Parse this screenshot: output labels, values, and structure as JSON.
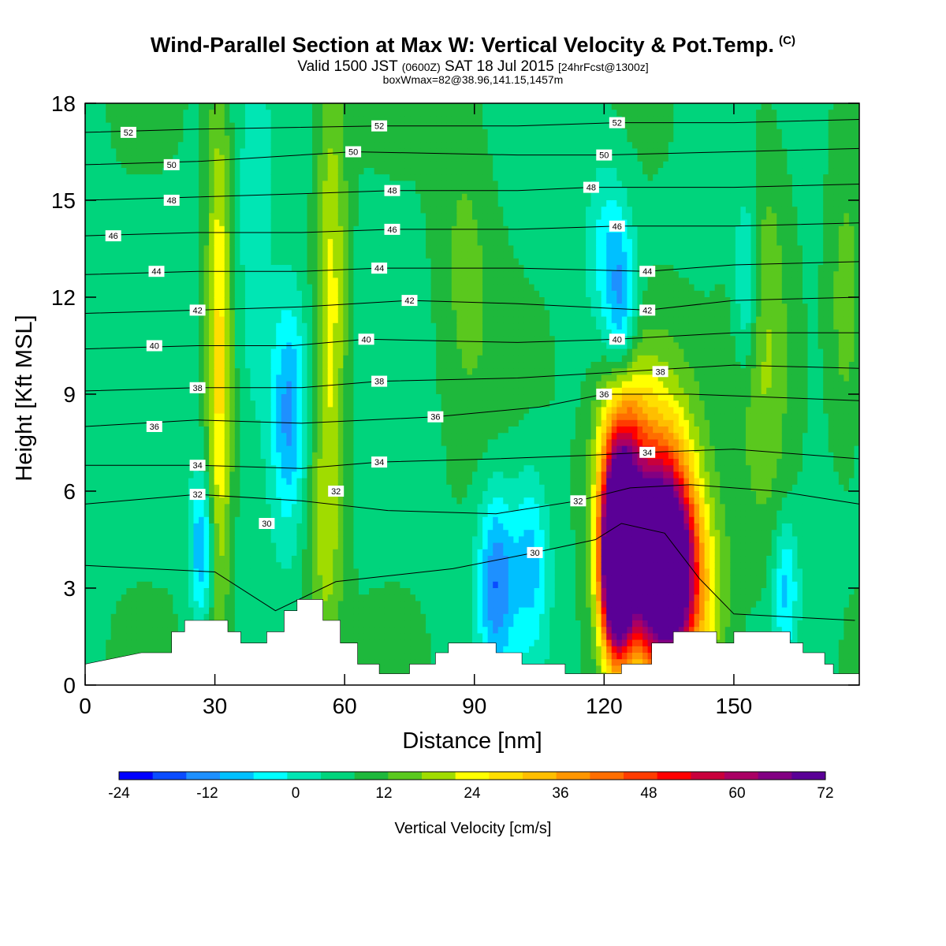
{
  "header": {
    "title": "Wind-Parallel Section at Max W: Vertical Velocity & Pot.Temp.",
    "copyright": "(C)",
    "valid_prefix": "Valid 1500 JST",
    "valid_utc": "(0600Z)",
    "valid_date": "SAT 18 Jul 2015",
    "forecast": "[24hrFcst@1300z]",
    "box_note": "boxWmax=82@38.96,141.15,1457m"
  },
  "chart_data": {
    "type": "heatmap",
    "xlabel": "Distance [nm]",
    "ylabel": "Height [Kft MSL]",
    "xlim": [
      0,
      179
    ],
    "ylim": [
      0,
      18
    ],
    "x_ticks": [
      0,
      30,
      60,
      90,
      120,
      150
    ],
    "y_ticks": [
      0,
      3,
      6,
      9,
      12,
      15,
      18
    ],
    "colorbar": {
      "label": "Vertical Velocity [cm/s]",
      "min": -24,
      "max": 72,
      "step": 4,
      "tick_labels": [
        "-24",
        "-12",
        "0",
        "12",
        "24",
        "36",
        "48",
        "60",
        "72"
      ],
      "colors": [
        "#0000ff",
        "#0a4cff",
        "#1e90ff",
        "#00c0ff",
        "#00ffff",
        "#00e6b4",
        "#00d47c",
        "#1eb83c",
        "#5ac81e",
        "#a0dc00",
        "#ffff00",
        "#ffde00",
        "#ffbe00",
        "#ff9600",
        "#ff6e00",
        "#ff3c00",
        "#ff0000",
        "#c8003c",
        "#aa0064",
        "#820082",
        "#5a0096"
      ]
    },
    "terrain_kft": [
      {
        "x": 0,
        "h": 0.65
      },
      {
        "x": 13,
        "h": 1.0
      },
      {
        "x": 20,
        "h": 1.0
      },
      {
        "x": 20,
        "h": 1.65
      },
      {
        "x": 23,
        "h": 1.65
      },
      {
        "x": 23,
        "h": 2.0
      },
      {
        "x": 33,
        "h": 2.0
      },
      {
        "x": 33,
        "h": 1.65
      },
      {
        "x": 36,
        "h": 1.65
      },
      {
        "x": 36,
        "h": 1.3
      },
      {
        "x": 42,
        "h": 1.3
      },
      {
        "x": 42,
        "h": 1.65
      },
      {
        "x": 46,
        "h": 1.65
      },
      {
        "x": 46,
        "h": 2.3
      },
      {
        "x": 49,
        "h": 2.3
      },
      {
        "x": 49,
        "h": 2.65
      },
      {
        "x": 55,
        "h": 2.65
      },
      {
        "x": 55,
        "h": 2.0
      },
      {
        "x": 59,
        "h": 2.0
      },
      {
        "x": 59,
        "h": 1.3
      },
      {
        "x": 63,
        "h": 1.3
      },
      {
        "x": 63,
        "h": 0.65
      },
      {
        "x": 68,
        "h": 0.65
      },
      {
        "x": 68,
        "h": 0.35
      },
      {
        "x": 75,
        "h": 0.35
      },
      {
        "x": 75,
        "h": 0.65
      },
      {
        "x": 81,
        "h": 0.65
      },
      {
        "x": 81,
        "h": 1.0
      },
      {
        "x": 84,
        "h": 1.0
      },
      {
        "x": 84,
        "h": 1.3
      },
      {
        "x": 95,
        "h": 1.3
      },
      {
        "x": 95,
        "h": 1.0
      },
      {
        "x": 101,
        "h": 1.0
      },
      {
        "x": 101,
        "h": 0.65
      },
      {
        "x": 111,
        "h": 0.65
      },
      {
        "x": 111,
        "h": 0.35
      },
      {
        "x": 124,
        "h": 0.35
      },
      {
        "x": 124,
        "h": 0.65
      },
      {
        "x": 131,
        "h": 0.65
      },
      {
        "x": 131,
        "h": 1.3
      },
      {
        "x": 136,
        "h": 1.3
      },
      {
        "x": 136,
        "h": 1.65
      },
      {
        "x": 146,
        "h": 1.65
      },
      {
        "x": 146,
        "h": 1.3
      },
      {
        "x": 150,
        "h": 1.3
      },
      {
        "x": 150,
        "h": 1.65
      },
      {
        "x": 163,
        "h": 1.65
      },
      {
        "x": 163,
        "h": 1.3
      },
      {
        "x": 166,
        "h": 1.3
      },
      {
        "x": 166,
        "h": 1.0
      },
      {
        "x": 171,
        "h": 1.0
      },
      {
        "x": 171,
        "h": 0.65
      },
      {
        "x": 173,
        "h": 0.65
      },
      {
        "x": 173,
        "h": 0.35
      },
      {
        "x": 179,
        "h": 0.35
      }
    ],
    "vertical_velocity_features": [
      {
        "x": 123,
        "y": 3.5,
        "peak": 72,
        "wx": 2.5,
        "wy": 1.8
      },
      {
        "x": 134,
        "y": 3.6,
        "peak": 70,
        "wx": 4.5,
        "wy": 2.0
      },
      {
        "x": 124,
        "y": 5.8,
        "peak": 40,
        "wx": 3.5,
        "wy": 2.5
      },
      {
        "x": 131,
        "y": 6.0,
        "peak": 26,
        "wx": 7.0,
        "wy": 3.0
      },
      {
        "x": 140,
        "y": 2.5,
        "peak": 16,
        "wx": 6.0,
        "wy": 2.0
      },
      {
        "x": 31,
        "y": 10.0,
        "peak": 18,
        "wx": 2.0,
        "wy": 6.0
      },
      {
        "x": 57,
        "y": 12.0,
        "peak": 14,
        "wx": 2.5,
        "wy": 5.0
      },
      {
        "x": 55,
        "y": 4.0,
        "peak": 8,
        "wx": 3.0,
        "wy": 3.0
      },
      {
        "x": 88,
        "y": 13.0,
        "peak": 6,
        "wx": 5.0,
        "wy": 4.0
      },
      {
        "x": 157,
        "y": 11.0,
        "peak": 8,
        "wx": 4.0,
        "wy": 5.0
      },
      {
        "x": 176,
        "y": 11.5,
        "peak": 8,
        "wx": 3.0,
        "wy": 3.0
      },
      {
        "x": 47,
        "y": 8.5,
        "peak": -18,
        "wx": 3.0,
        "wy": 2.5
      },
      {
        "x": 27,
        "y": 4.2,
        "peak": -16,
        "wx": 2.0,
        "wy": 1.5
      },
      {
        "x": 95,
        "y": 3.2,
        "peak": -18,
        "wx": 3.0,
        "wy": 2.0
      },
      {
        "x": 103,
        "y": 3.8,
        "peak": -12,
        "wx": 3.0,
        "wy": 2.0
      },
      {
        "x": 124,
        "y": 11.5,
        "peak": -16,
        "wx": 2.5,
        "wy": 2.0
      },
      {
        "x": 153,
        "y": 12.5,
        "peak": -12,
        "wx": 2.0,
        "wy": 2.0
      },
      {
        "x": 162,
        "y": 3.0,
        "peak": -12,
        "wx": 2.0,
        "wy": 1.5
      },
      {
        "x": 39,
        "y": 12.0,
        "peak": -6,
        "wx": 3.0,
        "wy": 4.0
      },
      {
        "x": 120,
        "y": 13.5,
        "peak": -8,
        "wx": 3.0,
        "wy": 2.0
      }
    ],
    "potential_temperature_labels": [
      {
        "text": "52",
        "x": 10,
        "y": 17.1
      },
      {
        "text": "50",
        "x": 20,
        "y": 16.1
      },
      {
        "text": "48",
        "x": 20,
        "y": 15.0
      },
      {
        "text": "46",
        "x": 6.5,
        "y": 13.9
      },
      {
        "text": "44",
        "x": 16.5,
        "y": 12.8
      },
      {
        "text": "42",
        "x": 26,
        "y": 11.6
      },
      {
        "text": "40",
        "x": 16,
        "y": 10.5
      },
      {
        "text": "38",
        "x": 26,
        "y": 9.2
      },
      {
        "text": "36",
        "x": 16,
        "y": 8.0
      },
      {
        "text": "34",
        "x": 26,
        "y": 6.8
      },
      {
        "text": "32",
        "x": 26,
        "y": 5.9
      },
      {
        "text": "30",
        "x": 42,
        "y": 5.0
      },
      {
        "text": "52",
        "x": 68,
        "y": 17.3
      },
      {
        "text": "50",
        "x": 62,
        "y": 16.5
      },
      {
        "text": "48",
        "x": 71,
        "y": 15.3
      },
      {
        "text": "46",
        "x": 71,
        "y": 14.1
      },
      {
        "text": "44",
        "x": 68,
        "y": 12.9
      },
      {
        "text": "42",
        "x": 75,
        "y": 11.9
      },
      {
        "text": "40",
        "x": 65,
        "y": 10.7
      },
      {
        "text": "38",
        "x": 68,
        "y": 9.4
      },
      {
        "text": "36",
        "x": 81,
        "y": 8.3
      },
      {
        "text": "34",
        "x": 68,
        "y": 6.9
      },
      {
        "text": "32",
        "x": 58,
        "y": 6.0
      },
      {
        "text": "30",
        "x": 104,
        "y": 4.1
      },
      {
        "text": "52",
        "x": 123,
        "y": 17.4
      },
      {
        "text": "50",
        "x": 120,
        "y": 16.4
      },
      {
        "text": "48",
        "x": 117,
        "y": 15.4
      },
      {
        "text": "46",
        "x": 123,
        "y": 14.2
      },
      {
        "text": "44",
        "x": 130,
        "y": 12.8
      },
      {
        "text": "42",
        "x": 130,
        "y": 11.6
      },
      {
        "text": "40",
        "x": 123,
        "y": 10.7
      },
      {
        "text": "38",
        "x": 133,
        "y": 9.7
      },
      {
        "text": "36",
        "x": 120,
        "y": 9.0
      },
      {
        "text": "34",
        "x": 130,
        "y": 7.2
      },
      {
        "text": "32",
        "x": 114,
        "y": 5.7
      }
    ],
    "potential_temperature_lines": [
      {
        "value": 30,
        "points": [
          [
            0,
            3.7
          ],
          [
            30,
            3.5
          ],
          [
            44,
            2.3
          ],
          [
            58,
            3.2
          ],
          [
            85,
            3.6
          ],
          [
            104,
            4.1
          ],
          [
            118,
            4.5
          ],
          [
            124,
            5.0
          ],
          [
            134,
            4.7
          ],
          [
            142,
            3.3
          ],
          [
            150,
            2.2
          ],
          [
            178,
            2.0
          ]
        ]
      },
      {
        "value": 32,
        "points": [
          [
            0,
            5.6
          ],
          [
            26,
            5.9
          ],
          [
            50,
            5.7
          ],
          [
            70,
            5.4
          ],
          [
            95,
            5.3
          ],
          [
            114,
            5.7
          ],
          [
            126,
            6.1
          ],
          [
            140,
            6.2
          ],
          [
            160,
            6.0
          ],
          [
            179,
            5.6
          ]
        ]
      },
      {
        "value": 34,
        "points": [
          [
            0,
            6.8
          ],
          [
            26,
            6.8
          ],
          [
            50,
            6.7
          ],
          [
            68,
            6.9
          ],
          [
            95,
            7.0
          ],
          [
            115,
            7.1
          ],
          [
            130,
            7.2
          ],
          [
            150,
            7.3
          ],
          [
            179,
            7.0
          ]
        ]
      },
      {
        "value": 36,
        "points": [
          [
            0,
            8.0
          ],
          [
            26,
            8.2
          ],
          [
            50,
            8.1
          ],
          [
            81,
            8.3
          ],
          [
            105,
            8.6
          ],
          [
            120,
            9.0
          ],
          [
            140,
            9.0
          ],
          [
            179,
            8.8
          ]
        ]
      },
      {
        "value": 38,
        "points": [
          [
            0,
            9.1
          ],
          [
            26,
            9.2
          ],
          [
            50,
            9.2
          ],
          [
            68,
            9.4
          ],
          [
            100,
            9.5
          ],
          [
            125,
            9.7
          ],
          [
            150,
            9.9
          ],
          [
            179,
            9.8
          ]
        ]
      },
      {
        "value": 40,
        "points": [
          [
            0,
            10.4
          ],
          [
            26,
            10.5
          ],
          [
            48,
            10.5
          ],
          [
            65,
            10.7
          ],
          [
            100,
            10.6
          ],
          [
            123,
            10.7
          ],
          [
            150,
            10.9
          ],
          [
            179,
            10.9
          ]
        ]
      },
      {
        "value": 42,
        "points": [
          [
            0,
            11.5
          ],
          [
            26,
            11.6
          ],
          [
            50,
            11.7
          ],
          [
            75,
            11.9
          ],
          [
            100,
            11.8
          ],
          [
            130,
            11.6
          ],
          [
            150,
            11.9
          ],
          [
            179,
            12.0
          ]
        ]
      },
      {
        "value": 44,
        "points": [
          [
            0,
            12.7
          ],
          [
            26,
            12.8
          ],
          [
            50,
            12.8
          ],
          [
            68,
            12.9
          ],
          [
            100,
            12.9
          ],
          [
            130,
            12.8
          ],
          [
            150,
            13.0
          ],
          [
            179,
            13.1
          ]
        ]
      },
      {
        "value": 46,
        "points": [
          [
            0,
            13.9
          ],
          [
            26,
            14.0
          ],
          [
            50,
            14.0
          ],
          [
            71,
            14.1
          ],
          [
            100,
            14.1
          ],
          [
            123,
            14.2
          ],
          [
            150,
            14.2
          ],
          [
            179,
            14.3
          ]
        ]
      },
      {
        "value": 48,
        "points": [
          [
            0,
            15.0
          ],
          [
            26,
            15.1
          ],
          [
            50,
            15.2
          ],
          [
            71,
            15.3
          ],
          [
            100,
            15.3
          ],
          [
            117,
            15.4
          ],
          [
            150,
            15.4
          ],
          [
            179,
            15.5
          ]
        ]
      },
      {
        "value": 50,
        "points": [
          [
            0,
            16.1
          ],
          [
            26,
            16.2
          ],
          [
            62,
            16.5
          ],
          [
            100,
            16.4
          ],
          [
            120,
            16.4
          ],
          [
            150,
            16.5
          ],
          [
            179,
            16.6
          ]
        ]
      },
      {
        "value": 52,
        "points": [
          [
            0,
            17.1
          ],
          [
            26,
            17.2
          ],
          [
            68,
            17.3
          ],
          [
            100,
            17.3
          ],
          [
            123,
            17.4
          ],
          [
            150,
            17.4
          ],
          [
            179,
            17.5
          ]
        ]
      }
    ]
  }
}
